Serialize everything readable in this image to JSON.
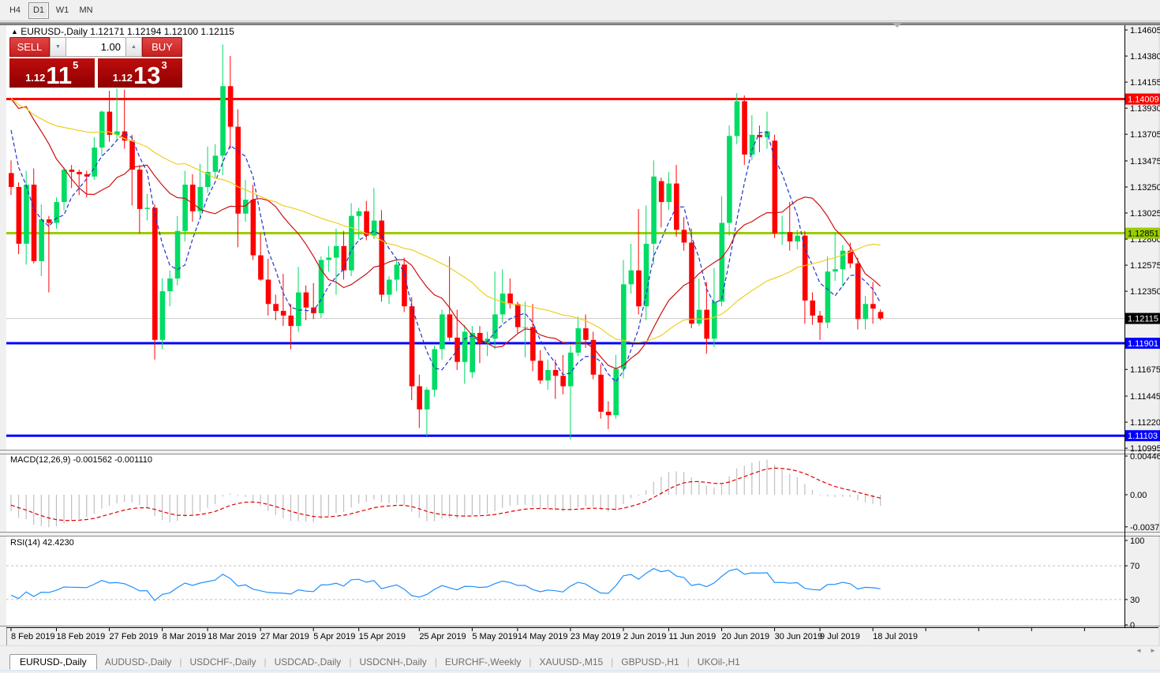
{
  "toolbar": {
    "timeframes": [
      {
        "label": "H4",
        "active": false
      },
      {
        "label": "D1",
        "active": true
      },
      {
        "label": "W1",
        "active": false
      },
      {
        "label": "MN",
        "active": false
      }
    ]
  },
  "icons": {
    "title_marker": "▲",
    "spinner_down": "▼",
    "spinner_up": "▲",
    "scroll_left": "◄",
    "scroll_right": "►",
    "shift_marker": "▼"
  },
  "chart": {
    "title": {
      "symbol": "EURUSD-,Daily",
      "ohlc": "1.12171 1.12194 1.12100 1.12115"
    },
    "trade_panel": {
      "sell_label": "SELL",
      "buy_label": "BUY",
      "volume": "1.00",
      "sell_small": "1.12",
      "sell_big": "11",
      "sell_sup": "5",
      "buy_small": "1.12",
      "buy_big": "13",
      "buy_sup": "3"
    }
  },
  "chart_data": {
    "type": "candlestick",
    "symbol": "EURUSD-",
    "timeframe": "Daily",
    "colors": {
      "up": "#00dc64",
      "down": "#ff0000",
      "bid_line": "#c8c8c8",
      "macd_hist": "#bfbfbf",
      "macd_signal": "#e00000",
      "rsi_line": "#1e90ff"
    },
    "price_axis_ticks": [
      "1.14605",
      "1.14380",
      "1.14155",
      "1.13930",
      "1.13705",
      "1.13475",
      "1.13250",
      "1.13025",
      "1.12800",
      "1.12575",
      "1.12350",
      "1.11675",
      "1.11445",
      "1.11220",
      "1.10995"
    ],
    "levels": [
      {
        "label": "1.14009",
        "price": 1.14009,
        "color": "#ff0000",
        "text": "#ffffff"
      },
      {
        "label": "1.12851",
        "price": 1.12851,
        "color": "#99cc00",
        "text": "#000000"
      },
      {
        "label": "1.11901",
        "price": 1.11901,
        "color": "#0000ff",
        "text": "#ffffff"
      },
      {
        "label": "1.11103",
        "price": 1.11103,
        "color": "#0000ff",
        "text": "#ffffff"
      }
    ],
    "current_price": {
      "label": "1.12115",
      "price": 1.12115,
      "line_color": "#c8c8c8",
      "bg": "#000000",
      "text": "#ffffff"
    },
    "moving_averages": [
      {
        "period": 5,
        "color": "#2233cc",
        "dashed": true
      },
      {
        "period": 13,
        "color": "#cc1111",
        "dashed": false
      },
      {
        "period": 34,
        "color": "#eecf1f",
        "dashed": false
      }
    ],
    "ma_seed_closes": [
      1.1465,
      1.147,
      1.141,
      1.1395,
      1.139,
      1.1362,
      1.1366,
      1.136,
      1.1385,
      1.1306,
      1.1406,
      1.143,
      1.1434,
      1.1481,
      1.1447,
      1.1456,
      1.1436,
      1.1405,
      1.1362,
      1.1342
    ],
    "candles": [
      [
        1.1337,
        1.1348,
        1.1318,
        1.1325
      ],
      [
        1.1325,
        1.1329,
        1.1267,
        1.1276
      ],
      [
        1.1276,
        1.1339,
        1.1258,
        1.1327
      ],
      [
        1.1327,
        1.1341,
        1.1259,
        1.1261
      ],
      [
        1.1261,
        1.131,
        1.1248,
        1.1297
      ],
      [
        1.1297,
        1.13,
        1.1234,
        1.1294
      ],
      [
        1.1294,
        1.1316,
        1.1289,
        1.1312
      ],
      [
        1.1312,
        1.1342,
        1.1305,
        1.134
      ],
      [
        1.134,
        1.1344,
        1.1324,
        1.1338
      ],
      [
        1.1338,
        1.134,
        1.1318,
        1.1336
      ],
      [
        1.1336,
        1.1339,
        1.1316,
        1.1334
      ],
      [
        1.1334,
        1.1368,
        1.1331,
        1.1359
      ],
      [
        1.1359,
        1.1391,
        1.1352,
        1.139
      ],
      [
        1.139,
        1.1408,
        1.1364,
        1.137
      ],
      [
        1.137,
        1.141,
        1.1365,
        1.1373
      ],
      [
        1.1373,
        1.1409,
        1.1358,
        1.1365
      ],
      [
        1.1365,
        1.137,
        1.1309,
        1.134
      ],
      [
        1.134,
        1.1344,
        1.1285,
        1.1306
      ],
      [
        1.1306,
        1.1319,
        1.1296,
        1.1307
      ],
      [
        1.1307,
        1.131,
        1.1176,
        1.1193
      ],
      [
        1.1193,
        1.1246,
        1.1185,
        1.1235
      ],
      [
        1.1235,
        1.1253,
        1.1222,
        1.1246
      ],
      [
        1.1246,
        1.13,
        1.124,
        1.1287
      ],
      [
        1.1287,
        1.1339,
        1.1278,
        1.1327
      ],
      [
        1.1327,
        1.1336,
        1.1295,
        1.1304
      ],
      [
        1.1304,
        1.1345,
        1.1299,
        1.1325
      ],
      [
        1.1325,
        1.136,
        1.132,
        1.1338
      ],
      [
        1.1338,
        1.1362,
        1.1333,
        1.1352
      ],
      [
        1.1352,
        1.1448,
        1.1335,
        1.1412
      ],
      [
        1.1412,
        1.1438,
        1.1358,
        1.1377
      ],
      [
        1.1377,
        1.1392,
        1.1273,
        1.1302
      ],
      [
        1.1302,
        1.1331,
        1.1295,
        1.1314
      ],
      [
        1.1314,
        1.1327,
        1.1262,
        1.1266
      ],
      [
        1.1266,
        1.1285,
        1.1244,
        1.1245
      ],
      [
        1.1245,
        1.1263,
        1.1214,
        1.1224
      ],
      [
        1.1224,
        1.1232,
        1.121,
        1.1218
      ],
      [
        1.1218,
        1.125,
        1.1205,
        1.1214
      ],
      [
        1.1214,
        1.1224,
        1.1185,
        1.1205
      ],
      [
        1.1205,
        1.1256,
        1.12,
        1.1234
      ],
      [
        1.1234,
        1.124,
        1.121,
        1.1221
      ],
      [
        1.1221,
        1.1242,
        1.1211,
        1.1216
      ],
      [
        1.1216,
        1.1265,
        1.1212,
        1.1262
      ],
      [
        1.1262,
        1.1274,
        1.1252,
        1.1264
      ],
      [
        1.1264,
        1.1289,
        1.1232,
        1.1274
      ],
      [
        1.1274,
        1.1287,
        1.1245,
        1.1253
      ],
      [
        1.1253,
        1.1311,
        1.1248,
        1.13
      ],
      [
        1.13,
        1.1307,
        1.128,
        1.1304
      ],
      [
        1.1304,
        1.1313,
        1.1279,
        1.1283
      ],
      [
        1.1283,
        1.1324,
        1.128,
        1.1296
      ],
      [
        1.1296,
        1.1305,
        1.1226,
        1.1232
      ],
      [
        1.1232,
        1.1248,
        1.1224,
        1.1245
      ],
      [
        1.1245,
        1.1262,
        1.1235,
        1.1258
      ],
      [
        1.1258,
        1.1264,
        1.1217,
        1.1222
      ],
      [
        1.1222,
        1.123,
        1.1141,
        1.1153
      ],
      [
        1.1153,
        1.1163,
        1.1117,
        1.1133
      ],
      [
        1.1133,
        1.1152,
        1.111,
        1.115
      ],
      [
        1.115,
        1.1188,
        1.1144,
        1.1185
      ],
      [
        1.1185,
        1.1219,
        1.1176,
        1.1215
      ],
      [
        1.1215,
        1.1265,
        1.1192,
        1.1195
      ],
      [
        1.1195,
        1.1219,
        1.1167,
        1.1174
      ],
      [
        1.1174,
        1.1206,
        1.1155,
        1.12
      ],
      [
        1.1165,
        1.1205,
        1.116,
        1.1199
      ],
      [
        1.1199,
        1.1205,
        1.1173,
        1.119
      ],
      [
        1.119,
        1.12,
        1.1179,
        1.1194
      ],
      [
        1.1194,
        1.1252,
        1.1185,
        1.1215
      ],
      [
        1.1215,
        1.1254,
        1.1208,
        1.1233
      ],
      [
        1.1233,
        1.1246,
        1.122,
        1.1224
      ],
      [
        1.1224,
        1.1226,
        1.1199,
        1.1204
      ],
      [
        1.1204,
        1.1226,
        1.1178,
        1.1204
      ],
      [
        1.1204,
        1.1224,
        1.1166,
        1.1175
      ],
      [
        1.1175,
        1.1184,
        1.1155,
        1.1158
      ],
      [
        1.1158,
        1.1176,
        1.115,
        1.1167
      ],
      [
        1.1167,
        1.1176,
        1.1142,
        1.1162
      ],
      [
        1.1162,
        1.118,
        1.1146,
        1.1153
      ],
      [
        1.1153,
        1.1188,
        1.1107,
        1.1182
      ],
      [
        1.1182,
        1.1213,
        1.1179,
        1.1203
      ],
      [
        1.1203,
        1.1215,
        1.1186,
        1.1193
      ],
      [
        1.1193,
        1.12,
        1.1159,
        1.1163
      ],
      [
        1.1163,
        1.1172,
        1.1125,
        1.1131
      ],
      [
        1.1131,
        1.114,
        1.1116,
        1.1128
      ],
      [
        1.1128,
        1.118,
        1.1125,
        1.1168
      ],
      [
        1.1168,
        1.1262,
        1.116,
        1.1241
      ],
      [
        1.1241,
        1.1276,
        1.1233,
        1.1253
      ],
      [
        1.1253,
        1.1306,
        1.1215,
        1.1222
      ],
      [
        1.1222,
        1.1309,
        1.121,
        1.1276
      ],
      [
        1.1276,
        1.1348,
        1.1258,
        1.1334
      ],
      [
        1.133,
        1.1333,
        1.129,
        1.1312
      ],
      [
        1.1312,
        1.1338,
        1.1305,
        1.1328
      ],
      [
        1.1328,
        1.1344,
        1.1282,
        1.1288
      ],
      [
        1.1288,
        1.1299,
        1.127,
        1.1277
      ],
      [
        1.1277,
        1.1289,
        1.1203,
        1.1207
      ],
      [
        1.1207,
        1.1246,
        1.1205,
        1.1219
      ],
      [
        1.1219,
        1.1243,
        1.1181,
        1.1194
      ],
      [
        1.1194,
        1.1255,
        1.1187,
        1.1226
      ],
      [
        1.1226,
        1.1317,
        1.1222,
        1.1294
      ],
      [
        1.1294,
        1.1378,
        1.1283,
        1.1369
      ],
      [
        1.1369,
        1.1406,
        1.1362,
        1.1399
      ],
      [
        1.1399,
        1.1404,
        1.1344,
        1.1353
      ],
      [
        1.1353,
        1.1387,
        1.1348,
        1.137
      ],
      [
        1.137,
        1.1378,
        1.1355,
        1.1368
      ],
      [
        1.1368,
        1.139,
        1.1358,
        1.1373
      ],
      [
        1.1365,
        1.137,
        1.1281,
        1.1285
      ],
      [
        1.1285,
        1.13,
        1.1275,
        1.1286
      ],
      [
        1.1286,
        1.1312,
        1.127,
        1.1278
      ],
      [
        1.1278,
        1.1288,
        1.1271,
        1.1283
      ],
      [
        1.1283,
        1.1287,
        1.1207,
        1.1227
      ],
      [
        1.1227,
        1.1234,
        1.1206,
        1.1214
      ],
      [
        1.1214,
        1.1218,
        1.1193,
        1.1208
      ],
      [
        1.1208,
        1.1265,
        1.1203,
        1.1252
      ],
      [
        1.1252,
        1.1286,
        1.1244,
        1.1254
      ],
      [
        1.1254,
        1.1275,
        1.1239,
        1.127
      ],
      [
        1.127,
        1.1277,
        1.1255,
        1.1259
      ],
      [
        1.1259,
        1.1264,
        1.1202,
        1.1211
      ],
      [
        1.1211,
        1.1231,
        1.1202,
        1.1224
      ],
      [
        1.1224,
        1.1243,
        1.1207,
        1.122
      ],
      [
        1.12171,
        1.12194,
        1.121,
        1.12115
      ]
    ],
    "date_ticks": [
      {
        "index": 0,
        "label": "8 Feb 2019"
      },
      {
        "index": 6,
        "label": "18 Feb 2019"
      },
      {
        "index": 13,
        "label": "27 Feb 2019"
      },
      {
        "index": 20,
        "label": "8 Mar 2019"
      },
      {
        "index": 26,
        "label": "18 Mar 2019"
      },
      {
        "index": 33,
        "label": "27 Mar 2019"
      },
      {
        "index": 40,
        "label": "5 Apr 2019"
      },
      {
        "index": 46,
        "label": "15 Apr 2019"
      },
      {
        "index": 54,
        "label": "25 Apr 2019"
      },
      {
        "index": 61,
        "label": "5 May 2019"
      },
      {
        "index": 67,
        "label": "14 May 2019"
      },
      {
        "index": 74,
        "label": "23 May 2019"
      },
      {
        "index": 81,
        "label": "2 Jun 2019"
      },
      {
        "index": 87,
        "label": "11 Jun 2019"
      },
      {
        "index": 94,
        "label": "20 Jun 2019"
      },
      {
        "index": 101,
        "label": "30 Jun 2019"
      },
      {
        "index": 107,
        "label": "9 Jul 2019"
      },
      {
        "index": 114,
        "label": "18 Jul 2019"
      }
    ],
    "macd": {
      "label": "MACD(12,26,9) -0.001562 -0.001110",
      "fast": 12,
      "slow": 26,
      "signal": 9,
      "axis_ticks": [
        "0.004465",
        "0.00",
        "-0.003715"
      ],
      "axis_values": [
        0.004465,
        0.0,
        -0.003715
      ]
    },
    "rsi": {
      "label": "RSI(14) 42.4230",
      "period": 14,
      "guide_levels": [
        70,
        30
      ],
      "axis_ticks": [
        "100",
        "70",
        "30",
        "0"
      ],
      "axis_values": [
        100,
        70,
        30,
        0
      ]
    }
  },
  "tabs": [
    {
      "label": "EURUSD-,Daily",
      "active": true
    },
    {
      "label": "AUDUSD-,Daily",
      "active": false
    },
    {
      "label": "USDCHF-,Daily",
      "active": false
    },
    {
      "label": "USDCAD-,Daily",
      "active": false
    },
    {
      "label": "USDCNH-,Daily",
      "active": false
    },
    {
      "label": "EURCHF-,Weekly",
      "active": false
    },
    {
      "label": "XAUUSD-,M15",
      "active": false
    },
    {
      "label": "GBPUSD-,H1",
      "active": false
    },
    {
      "label": "UKOil-,H1",
      "active": false
    }
  ]
}
